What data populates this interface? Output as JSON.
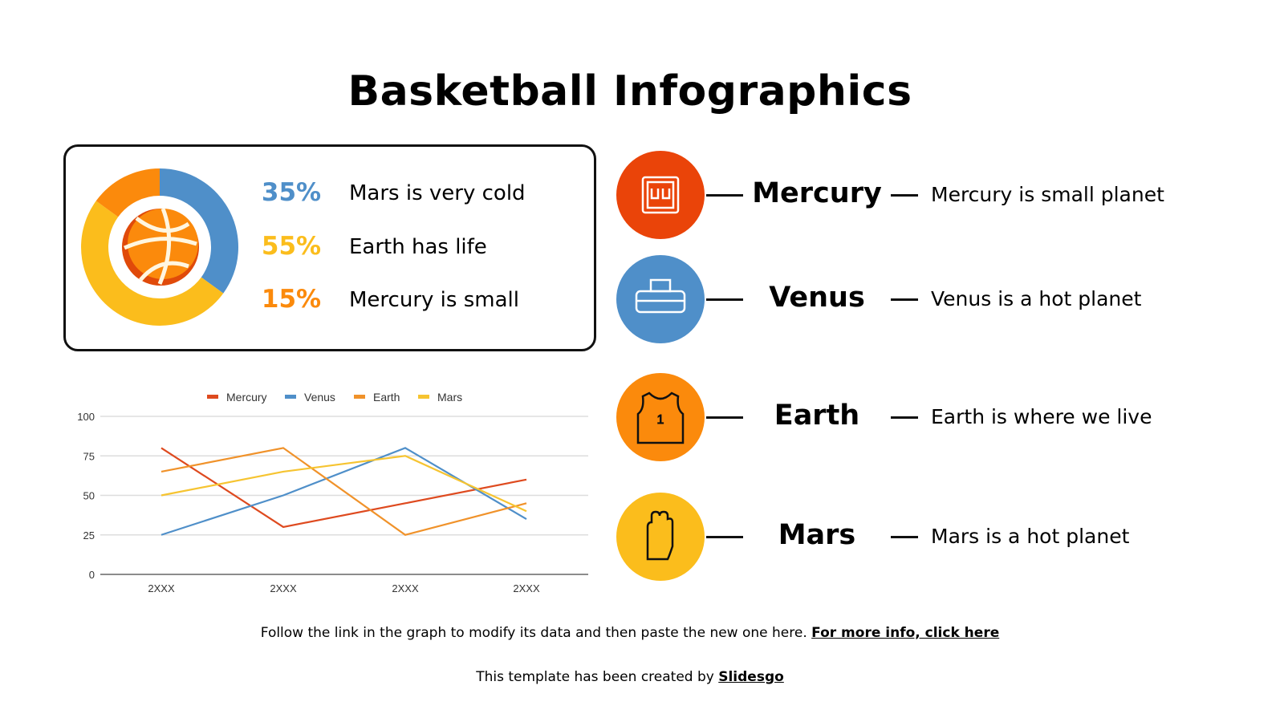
{
  "title": "Basketball Infographics",
  "donut": {
    "items": [
      {
        "percent": "35%",
        "value": 35,
        "label": "Mars is very cold",
        "color": "#4f8fc9"
      },
      {
        "percent": "55%",
        "value": 55,
        "label": "Earth has life",
        "color": "#fbbd1c"
      },
      {
        "percent": "15%",
        "value": 15,
        "label": "Mercury is small",
        "color": "#fb8a0c"
      }
    ],
    "center_icon": "basketball-icon"
  },
  "planets": [
    {
      "name": "Mercury",
      "desc": "Mercury is small planet",
      "color": "#ea4409",
      "icon": "scoreboard-icon"
    },
    {
      "name": "Venus",
      "desc": "Venus is a hot planet",
      "color": "#4f8fc9",
      "icon": "gym-bag-icon"
    },
    {
      "name": "Earth",
      "desc": "Earth is where we live",
      "color": "#fb8a0c",
      "icon": "jersey-icon"
    },
    {
      "name": "Mars",
      "desc": "Mars is a hot planet",
      "color": "#fbbd1c",
      "icon": "glove-icon"
    }
  ],
  "chart_data": {
    "type": "line",
    "categories": [
      "2XXX",
      "2XXX",
      "2XXX",
      "2XXX"
    ],
    "ylim": [
      0,
      100
    ],
    "yticks": [
      0,
      25,
      50,
      75,
      100
    ],
    "grid": true,
    "legend": "top",
    "series": [
      {
        "name": "Mercury",
        "color": "#de4a1f",
        "values": [
          80,
          30,
          45,
          60
        ]
      },
      {
        "name": "Venus",
        "color": "#4f8fc9",
        "values": [
          25,
          50,
          80,
          35
        ]
      },
      {
        "name": "Earth",
        "color": "#f0922a",
        "values": [
          65,
          80,
          25,
          45
        ]
      },
      {
        "name": "Mars",
        "color": "#f6c431",
        "values": [
          50,
          65,
          75,
          40
        ]
      }
    ]
  },
  "footer": {
    "note": "Follow the link in the graph to modify its data and then paste the new one here. ",
    "link": "For more info, click here",
    "credit": "This template has been created by ",
    "brand": "Slidesgo"
  }
}
